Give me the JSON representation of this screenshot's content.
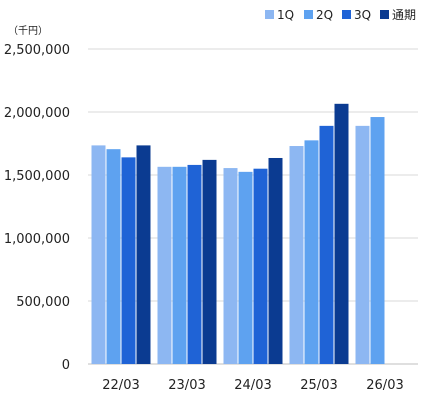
{
  "chart_data": {
    "type": "bar",
    "unit_label": "（千円）",
    "categories": [
      "22/03",
      "23/03",
      "24/03",
      "25/03",
      "26/03"
    ],
    "ylim": [
      0,
      2500000
    ],
    "y_ticks": [
      0,
      500000,
      1000000,
      1500000,
      2000000,
      2500000
    ],
    "y_tick_labels": [
      "0",
      "500,000",
      "1,000,000",
      "1,500,000",
      "2,000,000",
      "2,500,000"
    ],
    "grid": true,
    "legend_position": "top-right",
    "series": [
      {
        "name": "1Q",
        "color": "#8db7f2",
        "values": [
          1735000,
          1565000,
          1555000,
          1730000,
          1890000
        ]
      },
      {
        "name": "2Q",
        "color": "#5ea2f0",
        "values": [
          1705000,
          1565000,
          1525000,
          1775000,
          1960000
        ]
      },
      {
        "name": "3Q",
        "color": "#1f63d6",
        "values": [
          1640000,
          1580000,
          1550000,
          1890000,
          null
        ]
      },
      {
        "name": "通期",
        "color": "#0b3b91",
        "values": [
          1735000,
          1620000,
          1635000,
          2065000,
          null
        ]
      }
    ]
  }
}
